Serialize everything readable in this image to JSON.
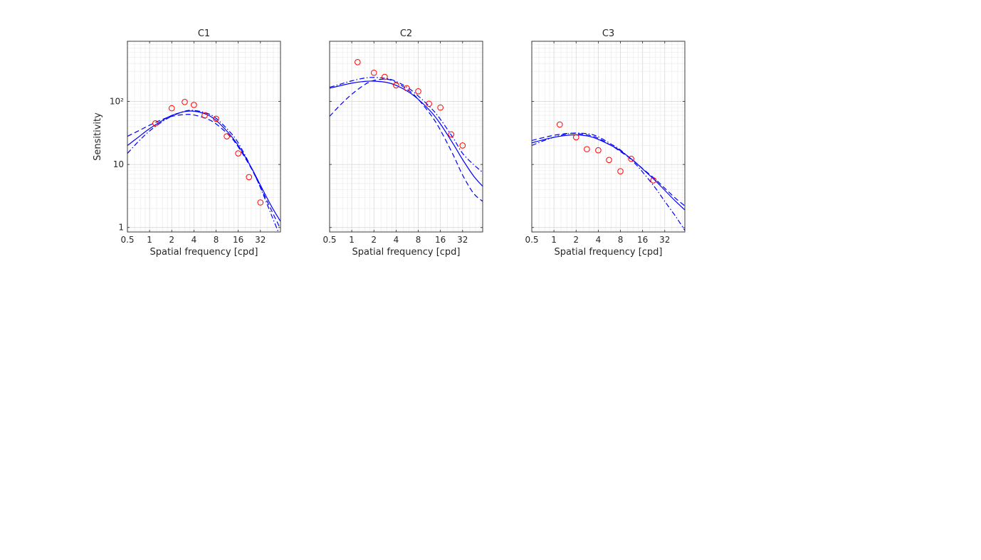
{
  "chart_data": [
    {
      "type": "scatter",
      "title": "C1",
      "xlabel": "Spatial frequency [cpd]",
      "ylabel": "Sensitivity",
      "xscale": "log2",
      "yscale": "log10",
      "xlim": [
        0.5,
        60
      ],
      "ylim": [
        0.85,
        900
      ],
      "xticks": [
        0.5,
        1,
        2,
        4,
        8,
        16,
        32
      ],
      "xtick_labels": [
        "0.5",
        "1",
        "2",
        "4",
        "8",
        "16",
        "32"
      ],
      "yticks": [
        1,
        10,
        100
      ],
      "ytick_labels": [
        "1",
        "10",
        "10²"
      ],
      "grid": true,
      "series": [
        {
          "kind": "markers",
          "marker": "circle-open",
          "color": "#ff0000",
          "x": [
            1.2,
            2,
            3,
            4,
            5.6,
            8,
            11.2,
            16,
            22.4,
            32
          ],
          "y": [
            45,
            78,
            98,
            88,
            60,
            53,
            28,
            15,
            6.3,
            2.5
          ]
        },
        {
          "kind": "line",
          "style": "solid",
          "color": "#0000ff",
          "x": [
            0.5,
            0.7,
            1,
            1.5,
            2,
            3,
            4,
            6,
            8,
            12,
            16,
            24,
            32,
            45,
            60
          ],
          "y": [
            20,
            27,
            37,
            50,
            60,
            69,
            70,
            62,
            50,
            31,
            20,
            9,
            4.7,
            2.2,
            1.25
          ]
        },
        {
          "kind": "line",
          "style": "dashed",
          "color": "#0000ff",
          "x": [
            0.5,
            0.7,
            1,
            1.5,
            2,
            3,
            4,
            6,
            8,
            12,
            16,
            24,
            32,
            45,
            60
          ],
          "y": [
            28,
            34,
            42,
            52,
            58,
            62,
            61,
            53,
            44,
            29,
            19,
            8.7,
            4.4,
            1.9,
            0.95
          ]
        },
        {
          "kind": "line",
          "style": "dashdot",
          "color": "#0000ff",
          "x": [
            0.5,
            0.7,
            1,
            1.5,
            2,
            3,
            4,
            6,
            8,
            12,
            16,
            24,
            32,
            45,
            60
          ],
          "y": [
            15,
            23,
            34,
            48,
            58,
            70,
            72,
            65,
            54,
            34,
            22,
            9,
            4.3,
            1.6,
            0.7
          ]
        }
      ]
    },
    {
      "type": "scatter",
      "title": "C2",
      "xlabel": "Spatial frequency [cpd]",
      "ylabel": "",
      "xscale": "log2",
      "yscale": "log10",
      "xlim": [
        0.5,
        60
      ],
      "ylim": [
        0.85,
        900
      ],
      "xticks": [
        0.5,
        1,
        2,
        4,
        8,
        16,
        32
      ],
      "xtick_labels": [
        "0.5",
        "1",
        "2",
        "4",
        "8",
        "16",
        "32"
      ],
      "yticks": [
        1,
        10,
        100
      ],
      "ytick_labels": [
        "",
        "",
        ""
      ],
      "grid": true,
      "series": [
        {
          "kind": "markers",
          "marker": "circle-open",
          "color": "#ff0000",
          "x": [
            1.2,
            2,
            2.8,
            4,
            5.6,
            8,
            11.2,
            16,
            22.4,
            32
          ],
          "y": [
            420,
            285,
            245,
            180,
            162,
            145,
            92,
            80,
            30,
            20
          ]
        },
        {
          "kind": "line",
          "style": "solid",
          "color": "#0000ff",
          "x": [
            0.5,
            0.7,
            1,
            1.5,
            2,
            3,
            4,
            6,
            8,
            12,
            16,
            24,
            32,
            45,
            60
          ],
          "y": [
            162,
            178,
            195,
            208,
            210,
            200,
            180,
            140,
            108,
            68,
            44,
            21,
            12,
            6.6,
            4.5
          ]
        },
        {
          "kind": "line",
          "style": "dashed",
          "color": "#0000ff",
          "x": [
            0.5,
            0.7,
            1,
            1.5,
            2,
            3,
            4,
            6,
            8,
            12,
            16,
            24,
            32,
            45,
            60
          ],
          "y": [
            58,
            88,
            130,
            185,
            215,
            225,
            200,
            148,
            108,
            60,
            35,
            14,
            6.8,
            3.5,
            2.6
          ]
        },
        {
          "kind": "line",
          "style": "dashdot",
          "color": "#0000ff",
          "x": [
            0.5,
            0.7,
            1,
            1.5,
            2,
            3,
            4,
            6,
            8,
            12,
            16,
            24,
            32,
            45,
            60
          ],
          "y": [
            168,
            188,
            212,
            235,
            240,
            230,
            208,
            160,
            122,
            78,
            52,
            26,
            15,
            10,
            7.5
          ]
        }
      ]
    },
    {
      "type": "scatter",
      "title": "C3",
      "xlabel": "Spatial frequency [cpd]",
      "ylabel": "",
      "xscale": "log2",
      "yscale": "log10",
      "xlim": [
        0.5,
        60
      ],
      "ylim": [
        0.85,
        900
      ],
      "xticks": [
        0.5,
        1,
        2,
        4,
        8,
        16,
        32
      ],
      "xtick_labels": [
        "0.5",
        "1",
        "2",
        "4",
        "8",
        "16",
        "32"
      ],
      "yticks": [
        1,
        10,
        100
      ],
      "ytick_labels": [
        "",
        "",
        ""
      ],
      "grid": true,
      "series": [
        {
          "kind": "markers",
          "marker": "circle-open",
          "color": "#ff0000",
          "x": [
            1.2,
            2,
            2.8,
            4,
            5.6,
            8,
            11.2,
            22.4
          ],
          "y": [
            43,
            27,
            17.5,
            16.8,
            11.8,
            7.8,
            12.3,
            5.6
          ]
        },
        {
          "kind": "line",
          "style": "solid",
          "color": "#0000ff",
          "x": [
            0.5,
            0.7,
            1,
            1.5,
            2,
            3,
            4,
            6,
            8,
            12,
            16,
            24,
            32,
            45,
            60
          ],
          "y": [
            22,
            24.5,
            27,
            29,
            29.5,
            28,
            25,
            20,
            16.5,
            11.5,
            8.5,
            5.5,
            3.9,
            2.6,
            1.9
          ]
        },
        {
          "kind": "line",
          "style": "dashed",
          "color": "#0000ff",
          "x": [
            0.5,
            0.7,
            1,
            1.5,
            2,
            3,
            4,
            6,
            8,
            12,
            16,
            24,
            32,
            45,
            60
          ],
          "y": [
            24,
            26.5,
            29,
            31,
            31,
            29,
            26,
            20,
            16,
            11.5,
            8.6,
            5.8,
            4.2,
            2.9,
            2.2
          ]
        },
        {
          "kind": "line",
          "style": "dashdot",
          "color": "#0000ff",
          "x": [
            0.5,
            0.7,
            1,
            1.5,
            2,
            3,
            4,
            6,
            8,
            12,
            16,
            24,
            32,
            45,
            60
          ],
          "y": [
            20,
            23.5,
            27,
            30.5,
            31.5,
            30.5,
            27.5,
            21,
            17,
            11,
            7.6,
            4.2,
            2.6,
            1.5,
            0.9
          ]
        }
      ]
    }
  ]
}
